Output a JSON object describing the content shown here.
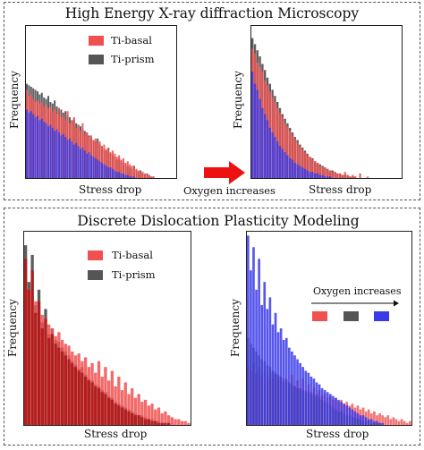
{
  "top_panel": {
    "title": "High Energy X-ray diffraction Microscopy",
    "between_label": "Oxygen increases"
  },
  "bottom_panel": {
    "title": "Discrete Dislocation Plasticity Modeling"
  },
  "colors": {
    "ti_basal": "#f05050",
    "ti_prism": "#555555",
    "blue": "#3a3ae8",
    "dark_red": "#b01818",
    "arrow": "#ee1111"
  },
  "chart_data": [
    {
      "id": "hedm-left",
      "type": "bar",
      "title": "",
      "xlabel": "Stress drop",
      "ylabel": "Frequency",
      "legend": [
        "Ti-basal",
        "Ti-prism"
      ],
      "legend_position": "top-right",
      "ylim": [
        0,
        1
      ],
      "series": [
        {
          "name": "Ti-prism",
          "color": "#555555",
          "values": [
            0.62,
            0.61,
            0.6,
            0.59,
            0.58,
            0.57,
            0.55,
            0.56,
            0.53,
            0.52,
            0.54,
            0.5,
            0.49,
            0.51,
            0.47,
            0.46,
            0.45,
            0.43,
            0.44,
            0.41,
            0.4,
            0.38,
            0.39,
            0.36,
            0.35,
            0.34,
            0.32,
            0.31,
            0.3,
            0.28,
            0.27,
            0.25,
            0.24,
            0.26,
            0.22,
            0.21,
            0.19,
            0.18,
            0.2,
            0.16,
            0.15,
            0.14,
            0.12,
            0.13,
            0.11,
            0.1,
            0.09,
            0.08,
            0.07,
            0.06,
            0.08,
            0.05,
            0.04,
            0.05,
            0.03,
            0.02,
            0.03,
            0.02,
            0.01,
            0.01,
            0.0,
            0.0,
            0.0,
            0.0,
            0.0,
            0.0,
            0.0,
            0.0,
            0.0,
            0.0
          ]
        },
        {
          "name": "Ti-basal",
          "color": "#f05050",
          "values": [
            0.58,
            0.54,
            0.55,
            0.52,
            0.5,
            0.51,
            0.49,
            0.5,
            0.47,
            0.48,
            0.46,
            0.47,
            0.44,
            0.45,
            0.42,
            0.46,
            0.4,
            0.41,
            0.38,
            0.44,
            0.36,
            0.37,
            0.4,
            0.33,
            0.34,
            0.31,
            0.36,
            0.29,
            0.3,
            0.27,
            0.28,
            0.25,
            0.26,
            0.23,
            0.24,
            0.21,
            0.22,
            0.19,
            0.2,
            0.17,
            0.18,
            0.16,
            0.14,
            0.15,
            0.12,
            0.13,
            0.1,
            0.11,
            0.09,
            0.08,
            0.07,
            0.06,
            0.05,
            0.04,
            0.04,
            0.03,
            0.02,
            0.02,
            0.01,
            0.01,
            0.0,
            0.0,
            0.0,
            0.0,
            0.0,
            0.0,
            0.0,
            0.0,
            0.0,
            0.0
          ]
        },
        {
          "name": "",
          "color": "#3a3ae8",
          "values": [
            0.45,
            0.43,
            0.44,
            0.42,
            0.4,
            0.41,
            0.38,
            0.39,
            0.37,
            0.36,
            0.34,
            0.35,
            0.33,
            0.31,
            0.32,
            0.3,
            0.28,
            0.29,
            0.27,
            0.25,
            0.26,
            0.24,
            0.22,
            0.23,
            0.21,
            0.19,
            0.2,
            0.18,
            0.16,
            0.17,
            0.15,
            0.14,
            0.13,
            0.12,
            0.11,
            0.1,
            0.09,
            0.08,
            0.07,
            0.07,
            0.06,
            0.05,
            0.04,
            0.04,
            0.03,
            0.03,
            0.02,
            0.02,
            0.01,
            0.01,
            0.01,
            0.0,
            0.0,
            0.0,
            0.0,
            0.0,
            0.0,
            0.0,
            0.0,
            0.0,
            0.0,
            0.0,
            0.0,
            0.0,
            0.0,
            0.0,
            0.0,
            0.0,
            0.0,
            0.0
          ]
        }
      ]
    },
    {
      "id": "hedm-right",
      "type": "bar",
      "title": "",
      "xlabel": "Stress drop",
      "ylabel": "Frequency",
      "ylim": [
        0,
        1
      ],
      "series": [
        {
          "name": "",
          "color": "#555555",
          "values": [
            0.92,
            0.88,
            0.84,
            0.8,
            0.75,
            0.71,
            0.66,
            0.62,
            0.58,
            0.54,
            0.5,
            0.46,
            0.42,
            0.39,
            0.36,
            0.33,
            0.3,
            0.27,
            0.25,
            0.22,
            0.2,
            0.18,
            0.16,
            0.14,
            0.13,
            0.11,
            0.1,
            0.09,
            0.08,
            0.07,
            0.06,
            0.05,
            0.05,
            0.04,
            0.03,
            0.03,
            0.02,
            0.02,
            0.02,
            0.01,
            0.01,
            0.01,
            0.0,
            0.0,
            0.0,
            0.0,
            0.0,
            0.0,
            0.0,
            0.0,
            0.0,
            0.0,
            0.0,
            0.0,
            0.0,
            0.0,
            0.0,
            0.0,
            0.0,
            0.0
          ]
        },
        {
          "name": "",
          "color": "#f05050",
          "values": [
            0.85,
            0.82,
            0.76,
            0.73,
            0.7,
            0.64,
            0.61,
            0.57,
            0.53,
            0.5,
            0.46,
            0.43,
            0.4,
            0.36,
            0.34,
            0.31,
            0.28,
            0.26,
            0.23,
            0.21,
            0.19,
            0.17,
            0.15,
            0.14,
            0.12,
            0.11,
            0.1,
            0.08,
            0.07,
            0.07,
            0.06,
            0.05,
            0.04,
            0.04,
            0.03,
            0.03,
            0.02,
            0.04,
            0.02,
            0.01,
            0.02,
            0.01,
            0.0,
            0.03,
            0.0,
            0.0,
            0.01,
            0.0,
            0.0,
            0.0,
            0.0,
            0.0,
            0.0,
            0.0,
            0.0,
            0.0,
            0.0,
            0.0,
            0.0,
            0.0
          ]
        },
        {
          "name": "",
          "color": "#3a3ae8",
          "values": [
            0.7,
            0.62,
            0.58,
            0.52,
            0.46,
            0.42,
            0.38,
            0.33,
            0.3,
            0.27,
            0.24,
            0.21,
            0.19,
            0.17,
            0.15,
            0.13,
            0.12,
            0.1,
            0.09,
            0.08,
            0.07,
            0.06,
            0.05,
            0.04,
            0.04,
            0.03,
            0.03,
            0.02,
            0.02,
            0.01,
            0.01,
            0.01,
            0.0,
            0.0,
            0.0,
            0.0,
            0.0,
            0.0,
            0.0,
            0.0,
            0.0,
            0.0,
            0.0,
            0.0,
            0.0,
            0.0,
            0.0,
            0.0,
            0.0,
            0.0,
            0.0,
            0.0,
            0.0,
            0.0,
            0.0,
            0.0,
            0.0,
            0.0,
            0.0,
            0.0
          ]
        }
      ]
    },
    {
      "id": "ddp-left",
      "type": "bar",
      "title": "",
      "xlabel": "Stress drop",
      "ylabel": "Frequency",
      "legend": [
        "Ti-basal",
        "Ti-prism"
      ],
      "legend_position": "top-right",
      "ylim": [
        0,
        1
      ],
      "series": [
        {
          "name": "Ti-prism",
          "color": "#555555",
          "values": [
            0.93,
            0.74,
            0.88,
            0.62,
            0.7,
            0.53,
            0.6,
            0.47,
            0.5,
            0.44,
            0.43,
            0.4,
            0.38,
            0.36,
            0.33,
            0.31,
            0.29,
            0.3,
            0.26,
            0.24,
            0.23,
            0.21,
            0.2,
            0.18,
            0.17,
            0.15,
            0.14,
            0.12,
            0.11,
            0.1,
            0.09,
            0.08,
            0.07,
            0.06,
            0.05,
            0.05,
            0.04,
            0.03,
            0.03,
            0.02,
            0.02,
            0.01,
            0.01,
            0.01,
            0.0,
            0.0,
            0.0,
            0.0,
            0.0,
            0.0
          ]
        },
        {
          "name": "Ti-basal",
          "color": "#f05050",
          "values": [
            0.72,
            0.7,
            0.66,
            0.64,
            0.6,
            0.57,
            0.55,
            0.52,
            0.5,
            0.46,
            0.48,
            0.44,
            0.42,
            0.41,
            0.38,
            0.36,
            0.37,
            0.33,
            0.35,
            0.3,
            0.32,
            0.27,
            0.33,
            0.25,
            0.3,
            0.23,
            0.28,
            0.2,
            0.25,
            0.18,
            0.22,
            0.16,
            0.19,
            0.14,
            0.16,
            0.12,
            0.13,
            0.1,
            0.11,
            0.08,
            0.09,
            0.06,
            0.07,
            0.05,
            0.04,
            0.03,
            0.03,
            0.02,
            0.02,
            0.01
          ]
        },
        {
          "name": "",
          "color": "#b01818",
          "values": [
            0.86,
            0.7,
            0.8,
            0.58,
            0.64,
            0.5,
            0.55,
            0.45,
            0.47,
            0.42,
            0.4,
            0.38,
            0.36,
            0.34,
            0.32,
            0.3,
            0.28,
            0.27,
            0.25,
            0.23,
            0.22,
            0.2,
            0.19,
            0.17,
            0.16,
            0.14,
            0.13,
            0.11,
            0.1,
            0.09,
            0.08,
            0.07,
            0.06,
            0.05,
            0.05,
            0.04,
            0.03,
            0.03,
            0.02,
            0.02,
            0.01,
            0.01,
            0.01,
            0.01,
            0.0,
            0.0,
            0.0,
            0.0,
            0.0,
            0.0
          ]
        }
      ]
    },
    {
      "id": "ddp-right",
      "type": "bar",
      "title": "",
      "xlabel": "Stress drop",
      "ylabel": "Frequency",
      "legend_title": "Oxygen increases",
      "legend_position": "top-right",
      "ylim": [
        0,
        1
      ],
      "series": [
        {
          "name": "",
          "color": "#f05050",
          "values": [
            0.3,
            0.28,
            0.32,
            0.27,
            0.3,
            0.26,
            0.28,
            0.25,
            0.27,
            0.24,
            0.26,
            0.23,
            0.25,
            0.22,
            0.24,
            0.21,
            0.26,
            0.2,
            0.23,
            0.19,
            0.24,
            0.18,
            0.21,
            0.17,
            0.19,
            0.16,
            0.18,
            0.15,
            0.16,
            0.14,
            0.15,
            0.13,
            0.14,
            0.12,
            0.13,
            0.11,
            0.12,
            0.1,
            0.11,
            0.09,
            0.1,
            0.08,
            0.09,
            0.07,
            0.08,
            0.06,
            0.07,
            0.05,
            0.06,
            0.05,
            0.04,
            0.05,
            0.03,
            0.04,
            0.03,
            0.02,
            0.03,
            0.02,
            0.01,
            0.02
          ]
        },
        {
          "name": "",
          "color": "#555555",
          "values": [
            0.45,
            0.42,
            0.4,
            0.38,
            0.36,
            0.34,
            0.33,
            0.31,
            0.3,
            0.28,
            0.27,
            0.26,
            0.25,
            0.24,
            0.23,
            0.22,
            0.21,
            0.2,
            0.19,
            0.19,
            0.18,
            0.17,
            0.17,
            0.16,
            0.15,
            0.15,
            0.14,
            0.13,
            0.12,
            0.11,
            0.1,
            0.09,
            0.08,
            0.07,
            0.07,
            0.06,
            0.05,
            0.05,
            0.04,
            0.04,
            0.03,
            0.03,
            0.02,
            0.02,
            0.02,
            0.01,
            0.01,
            0.01,
            0.01,
            0.0,
            0.0,
            0.0,
            0.0,
            0.0,
            0.0,
            0.0,
            0.0,
            0.0,
            0.0,
            0.0
          ]
        },
        {
          "name": "",
          "color": "#3a3ae8",
          "values": [
            0.98,
            0.8,
            0.92,
            0.7,
            0.86,
            0.62,
            0.74,
            0.6,
            0.66,
            0.52,
            0.58,
            0.48,
            0.5,
            0.44,
            0.45,
            0.4,
            0.38,
            0.36,
            0.34,
            0.32,
            0.3,
            0.28,
            0.27,
            0.25,
            0.24,
            0.22,
            0.21,
            0.19,
            0.18,
            0.17,
            0.16,
            0.15,
            0.14,
            0.13,
            0.12,
            0.11,
            0.1,
            0.09,
            0.08,
            0.07,
            0.06,
            0.05,
            0.05,
            0.04,
            0.03,
            0.03,
            0.02,
            0.02,
            0.01,
            0.01,
            0.0,
            0.0,
            0.0,
            0.0,
            0.0,
            0.0,
            0.0,
            0.0,
            0.0,
            0.0
          ]
        }
      ]
    }
  ]
}
